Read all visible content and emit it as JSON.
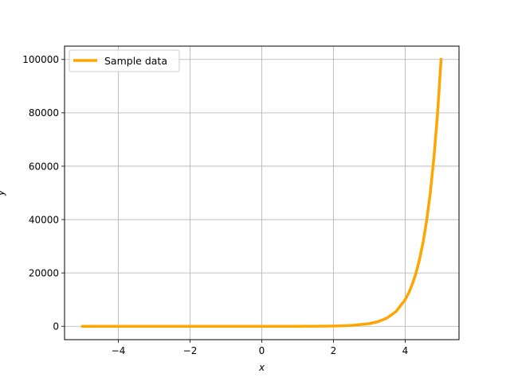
{
  "chart_data": {
    "type": "line",
    "xlabel": "x",
    "ylabel": "y",
    "xlim": [
      -5.5,
      5.5
    ],
    "ylim": [
      -5000,
      105000
    ],
    "xticks": [
      -4,
      -2,
      0,
      2,
      4
    ],
    "xtick_labels": [
      "−4",
      "−2",
      "0",
      "2",
      "4"
    ],
    "yticks": [
      0,
      20000,
      40000,
      60000,
      80000,
      100000
    ],
    "ytick_labels": [
      "0",
      "20000",
      "40000",
      "60000",
      "80000",
      "100000"
    ],
    "grid": true,
    "legend": "top-left",
    "series": [
      {
        "name": "Sample data",
        "color": "#FFA500",
        "x": [
          -5,
          -4,
          -3,
          -2,
          -1,
          0,
          1,
          1.5,
          2,
          2.5,
          3,
          3.25,
          3.5,
          3.75,
          4,
          4.1,
          4.2,
          4.3,
          4.4,
          4.5,
          4.6,
          4.7,
          4.8,
          4.9,
          5
        ],
        "y": [
          1e-05,
          0.0001,
          0.001,
          0.01,
          0.1,
          1,
          10,
          32,
          100,
          316,
          1000,
          1778,
          3162,
          5623,
          10000,
          12589,
          15849,
          19953,
          25119,
          31623,
          39811,
          50119,
          63096,
          79433,
          100000
        ]
      }
    ]
  }
}
